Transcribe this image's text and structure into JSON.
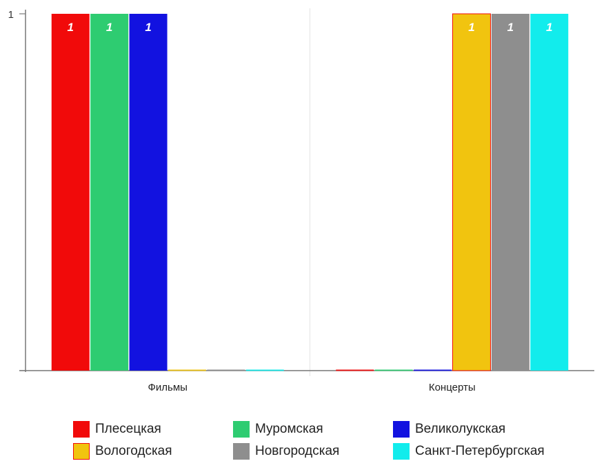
{
  "chart_data": {
    "type": "bar",
    "categories": [
      "Фильмы",
      "Концерты"
    ],
    "series": [
      {
        "name": "Плесецкая",
        "values": [
          1,
          0
        ],
        "color": "#f10a0a"
      },
      {
        "name": "Муромская",
        "values": [
          1,
          0
        ],
        "color": "#2ecc71"
      },
      {
        "name": "Великолукская",
        "values": [
          1,
          0
        ],
        "color": "#1212e0"
      },
      {
        "name": "Вологодская",
        "values": [
          0,
          1
        ],
        "color": "#f1c40f"
      },
      {
        "name": "Новгородская",
        "values": [
          0,
          1
        ],
        "color": "#8e8e8e"
      },
      {
        "name": "Санкт-Петербургская",
        "values": [
          0,
          1
        ],
        "color": "#12ecec"
      }
    ],
    "y_ticks": [
      "1"
    ],
    "ylim": [
      0,
      1
    ],
    "grid": "vertical category separators",
    "legend_position": "bottom",
    "data_labels": true
  }
}
